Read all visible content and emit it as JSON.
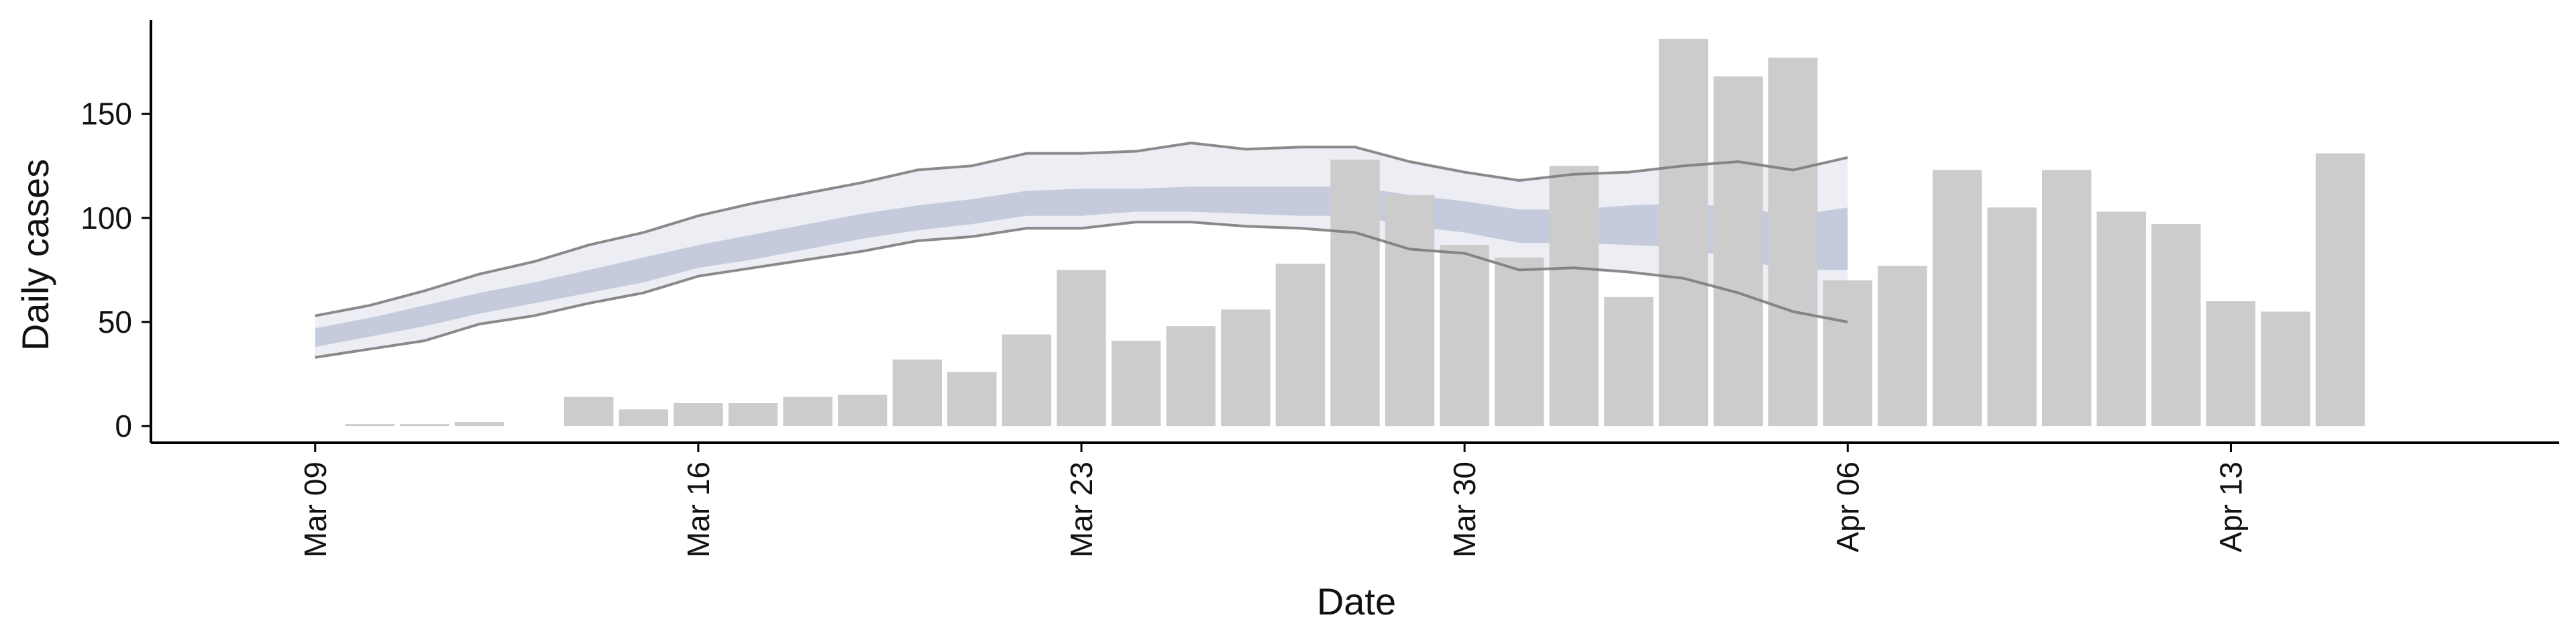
{
  "chart_data": {
    "type": "bar",
    "xlabel": "Date",
    "ylabel": "Daily cases",
    "ylim": [
      -8,
      195
    ],
    "yticks": [
      0,
      50,
      100,
      150
    ],
    "xticks": [
      "2020-03-09",
      "2020-03-16",
      "2020-03-23",
      "2020-03-30",
      "2020-04-06",
      "2020-04-13"
    ],
    "xtick_labels": [
      "Mar 09",
      "Mar 16",
      "Mar 23",
      "Mar 30",
      "Apr 06",
      "Apr 13"
    ],
    "xlim": [
      "2020-03-06",
      "2020-04-19"
    ],
    "grid": false,
    "legend": "none",
    "bars": {
      "color": "#cccccc",
      "data": [
        [
          "2020-03-10",
          1
        ],
        [
          "2020-03-11",
          1
        ],
        [
          "2020-03-12",
          2
        ],
        [
          "2020-03-14",
          14
        ],
        [
          "2020-03-15",
          8
        ],
        [
          "2020-03-16",
          11
        ],
        [
          "2020-03-17",
          11
        ],
        [
          "2020-03-18",
          14
        ],
        [
          "2020-03-19",
          15
        ],
        [
          "2020-03-20",
          32
        ],
        [
          "2020-03-21",
          26
        ],
        [
          "2020-03-22",
          44
        ],
        [
          "2020-03-23",
          75
        ],
        [
          "2020-03-24",
          41
        ],
        [
          "2020-03-25",
          48
        ],
        [
          "2020-03-26",
          56
        ],
        [
          "2020-03-27",
          78
        ],
        [
          "2020-03-28",
          128
        ],
        [
          "2020-03-29",
          111
        ],
        [
          "2020-03-30",
          87
        ],
        [
          "2020-03-31",
          81
        ],
        [
          "2020-04-01",
          125
        ],
        [
          "2020-04-02",
          62
        ],
        [
          "2020-04-03",
          186
        ],
        [
          "2020-04-04",
          168
        ],
        [
          "2020-04-05",
          177
        ],
        [
          "2020-04-06",
          70
        ],
        [
          "2020-04-07",
          77
        ],
        [
          "2020-04-08",
          123
        ],
        [
          "2020-04-09",
          105
        ],
        [
          "2020-04-10",
          123
        ],
        [
          "2020-04-11",
          103
        ],
        [
          "2020-04-12",
          97
        ],
        [
          "2020-04-13",
          60
        ],
        [
          "2020-04-14",
          55
        ],
        [
          "2020-04-15",
          131
        ]
      ]
    },
    "estimate": {
      "dates": [
        "2020-03-09",
        "2020-03-10",
        "2020-03-11",
        "2020-03-12",
        "2020-03-13",
        "2020-03-14",
        "2020-03-15",
        "2020-03-16",
        "2020-03-17",
        "2020-03-18",
        "2020-03-19",
        "2020-03-20",
        "2020-03-21",
        "2020-03-22",
        "2020-03-23",
        "2020-03-24",
        "2020-03-25",
        "2020-03-26",
        "2020-03-27",
        "2020-03-28",
        "2020-03-29",
        "2020-03-30",
        "2020-03-31",
        "2020-04-01",
        "2020-04-02",
        "2020-04-03",
        "2020-04-04",
        "2020-04-05",
        "2020-04-06"
      ],
      "upper_90": [
        53,
        58,
        65,
        73,
        79,
        87,
        93,
        101,
        107,
        112,
        117,
        123,
        125,
        131,
        131,
        132,
        136,
        133,
        134,
        134,
        127,
        122,
        118,
        121,
        122,
        125,
        127,
        123,
        129
      ],
      "lower_90": [
        33,
        37,
        41,
        49,
        53,
        59,
        64,
        72,
        76,
        80,
        84,
        89,
        91,
        95,
        95,
        98,
        98,
        96,
        95,
        93,
        85,
        83,
        75,
        76,
        74,
        71,
        64,
        55,
        50
      ],
      "upper_50": [
        47,
        52,
        58,
        64,
        69,
        75,
        81,
        87,
        92,
        97,
        102,
        106,
        109,
        113,
        114,
        114,
        115,
        115,
        115,
        115,
        111,
        108,
        104,
        104,
        106,
        107,
        105,
        101,
        105
      ],
      "lower_50": [
        38,
        43,
        48,
        54,
        59,
        64,
        69,
        76,
        80,
        85,
        90,
        94,
        97,
        101,
        101,
        103,
        103,
        102,
        101,
        101,
        96,
        93,
        88,
        88,
        87,
        86,
        80,
        75,
        75
      ],
      "inner_color": "#b8bfd6",
      "outer_color": "#e6e8f0",
      "bound_line_color": "#777777"
    }
  }
}
